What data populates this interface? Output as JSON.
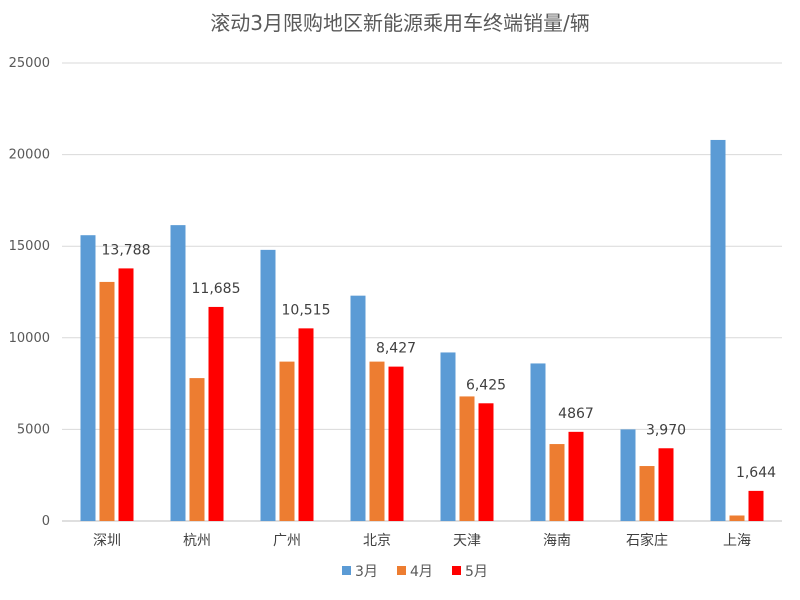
{
  "chart_data": {
    "type": "bar",
    "title": "滚动3月限购地区新能源乘用车终端销量/辆",
    "xlabel": "",
    "ylabel": "",
    "ylim": [
      0,
      25000
    ],
    "yticks": [
      {
        "value": 0,
        "label": "0"
      },
      {
        "value": 5000,
        "label": "5000"
      },
      {
        "value": 10000,
        "label": "10000"
      },
      {
        "value": 15000,
        "label": "15000"
      },
      {
        "value": 20000,
        "label": "20000"
      },
      {
        "value": 25000,
        "label": "25000"
      }
    ],
    "grid": true,
    "legend_position": "bottom",
    "categories": [
      "深圳",
      "杭州",
      "广州",
      "北京",
      "天津",
      "海南",
      "石家庄",
      "上海"
    ],
    "series": [
      {
        "name": "3月",
        "color": "#5b9bd5",
        "values": [
          15600,
          16150,
          14800,
          12300,
          9200,
          8600,
          5000,
          20800
        ]
      },
      {
        "name": "4月",
        "color": "#ed7d31",
        "values": [
          13050,
          7800,
          8700,
          8700,
          6800,
          4200,
          3000,
          300
        ]
      },
      {
        "name": "5月",
        "color": "#ff0000",
        "values": [
          13788,
          11685,
          10515,
          8427,
          6425,
          4867,
          3970,
          1644
        ]
      }
    ],
    "data_labels": [
      {
        "series": 2,
        "index": 0,
        "text": "13,788"
      },
      {
        "series": 2,
        "index": 1,
        "text": "11,685"
      },
      {
        "series": 2,
        "index": 2,
        "text": "10,515"
      },
      {
        "series": 2,
        "index": 3,
        "text": "8,427"
      },
      {
        "series": 2,
        "index": 4,
        "text": "6,425"
      },
      {
        "series": 2,
        "index": 5,
        "text": "4867"
      },
      {
        "series": 2,
        "index": 6,
        "text": "3,970"
      },
      {
        "series": 2,
        "index": 7,
        "text": "1,644"
      }
    ]
  }
}
